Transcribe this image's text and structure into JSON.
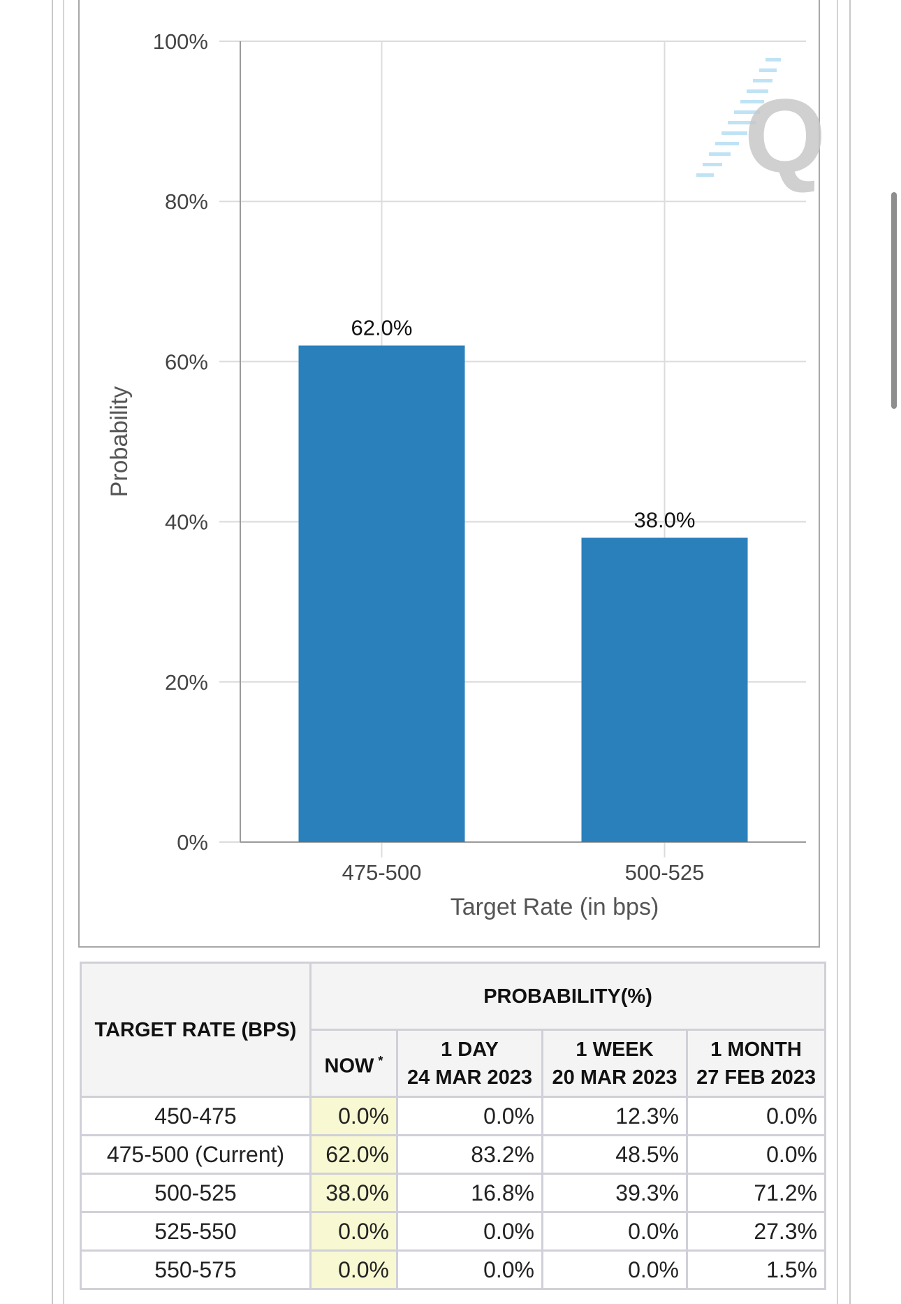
{
  "chart_data": {
    "type": "bar",
    "categories": [
      "475-500",
      "500-525"
    ],
    "values": [
      62.0,
      38.0
    ],
    "value_labels": [
      "62.0%",
      "38.0%"
    ],
    "xlabel": "Target Rate (in bps)",
    "ylabel": "Probability",
    "ylim": [
      0,
      100
    ],
    "y_ticks": [
      0,
      20,
      40,
      60,
      80,
      100
    ],
    "y_tick_labels": [
      "0%",
      "20%",
      "40%",
      "60%",
      "80%",
      "100%"
    ],
    "grid": true,
    "bar_color": "#2a80bb"
  },
  "watermark": {
    "letter": "Q",
    "color": "#c8c8c8",
    "accent": "#bfe3f5"
  },
  "table": {
    "rate_header": "TARGET RATE (BPS)",
    "prob_header": "PROBABILITY(%)",
    "columns": [
      {
        "line1": "NOW",
        "line2": "",
        "sup": "*"
      },
      {
        "line1": "1 DAY",
        "line2": "24 MAR 2023",
        "sup": ""
      },
      {
        "line1": "1 WEEK",
        "line2": "20 MAR 2023",
        "sup": ""
      },
      {
        "line1": "1 MONTH",
        "line2": "27 FEB 2023",
        "sup": ""
      }
    ],
    "rows": [
      {
        "rate": "450-475",
        "values": [
          "0.0%",
          "0.0%",
          "12.3%",
          "0.0%"
        ]
      },
      {
        "rate": "475-500 (Current)",
        "values": [
          "62.0%",
          "83.2%",
          "48.5%",
          "0.0%"
        ]
      },
      {
        "rate": "500-525",
        "values": [
          "38.0%",
          "16.8%",
          "39.3%",
          "71.2%"
        ]
      },
      {
        "rate": "525-550",
        "values": [
          "0.0%",
          "0.0%",
          "0.0%",
          "27.3%"
        ]
      },
      {
        "rate": "550-575",
        "values": [
          "0.0%",
          "0.0%",
          "0.0%",
          "1.5%"
        ]
      }
    ],
    "now_highlight": "#f8f8d2"
  }
}
